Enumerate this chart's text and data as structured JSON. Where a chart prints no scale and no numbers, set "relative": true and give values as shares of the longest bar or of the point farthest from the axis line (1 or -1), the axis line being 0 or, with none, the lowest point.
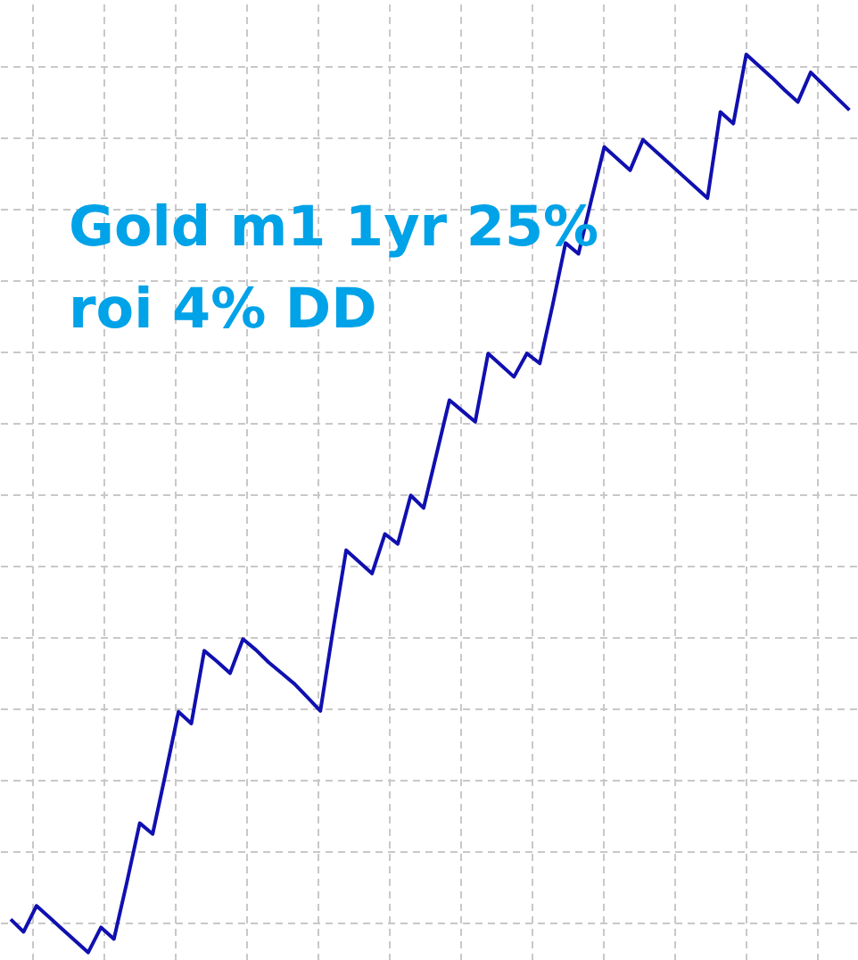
{
  "chart_data": {
    "type": "line",
    "relative": true,
    "tick_labels": false,
    "grid": true,
    "categories": [
      null,
      null,
      null,
      null,
      null,
      null,
      null,
      null,
      null,
      null,
      null,
      null,
      null,
      null,
      null,
      null,
      null,
      null,
      null,
      null,
      null,
      null,
      null,
      null,
      null,
      null,
      null,
      null,
      null,
      null,
      null,
      null,
      null,
      null,
      null,
      null,
      null,
      null,
      null,
      null,
      null,
      null,
      null,
      null,
      null,
      null,
      null,
      null,
      null,
      null,
      null,
      null,
      null,
      null,
      null,
      null,
      null,
      null,
      null,
      null,
      null,
      null,
      null,
      null,
      null,
      null
    ],
    "series": [
      {
        "color": "#1010b0",
        "values": [
          0.037,
          0.023,
          0.052,
          0.039,
          0.026,
          0.013,
          0,
          0.028,
          0.015,
          0.078,
          0.144,
          0.132,
          0.199,
          0.268,
          0.255,
          0.336,
          0.324,
          0.311,
          0.349,
          0.337,
          0.323,
          0.311,
          0.299,
          0.284,
          0.269,
          0.361,
          0.448,
          0.435,
          0.422,
          0.466,
          0.455,
          0.509,
          0.495,
          0.555,
          0.615,
          0.603,
          0.591,
          0.667,
          0.654,
          0.641,
          0.667,
          0.656,
          0.721,
          0.79,
          0.778,
          0.838,
          0.897,
          0.884,
          0.871,
          0.905,
          0.892,
          0.879,
          0.866,
          0.853,
          0.84,
          0.936,
          0.923,
          1,
          0.987,
          0.974,
          0.96,
          0.947,
          0.98,
          0.966,
          0.952,
          0.938
        ]
      }
    ],
    "annotations": [
      "Gold m1 1yr 25%",
      "roi 4% DD"
    ]
  }
}
